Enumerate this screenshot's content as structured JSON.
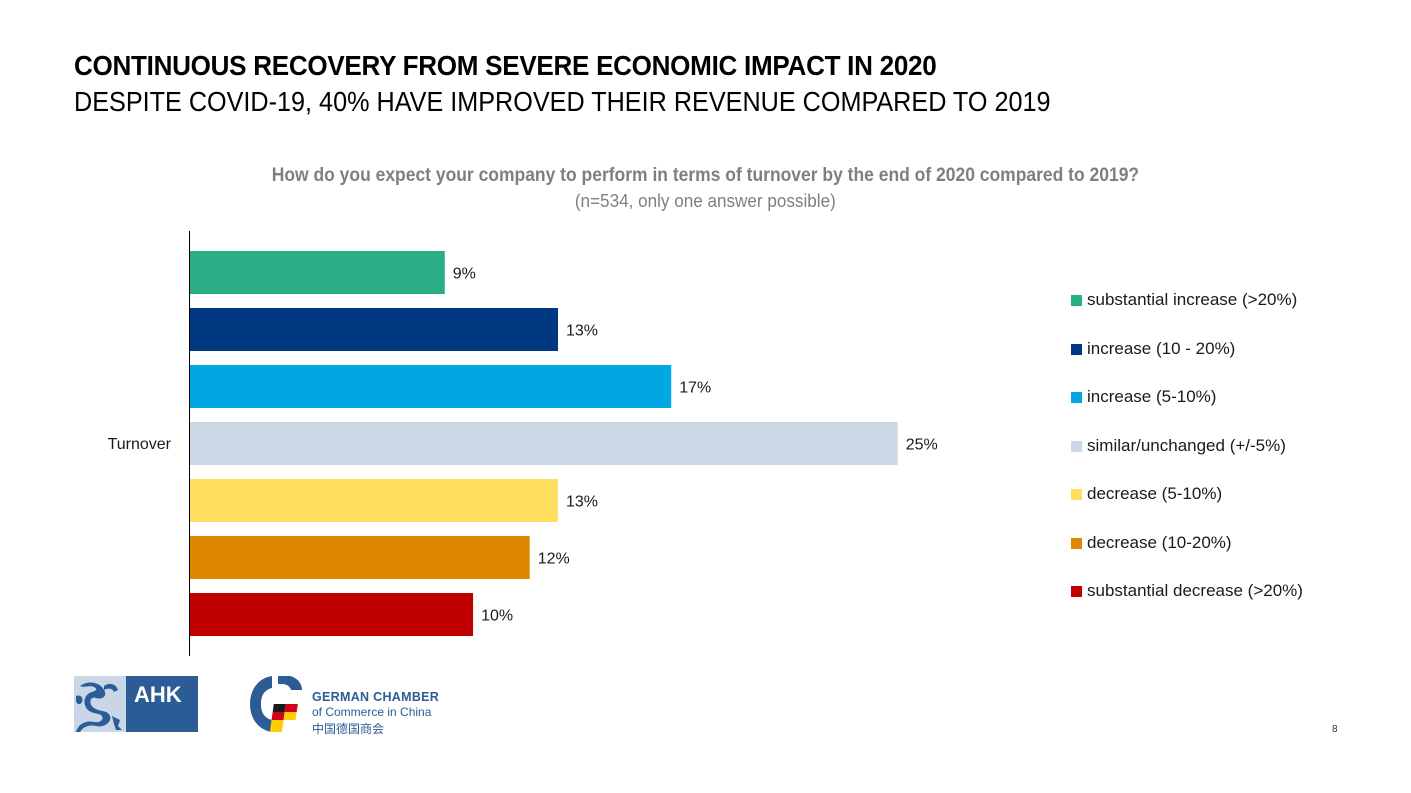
{
  "header": {
    "title": "CONTINUOUS RECOVERY FROM SEVERE ECONOMIC IMPACT IN 2020",
    "subtitle": "DESPITE COVID-19, 40% HAVE IMPROVED THEIR REVENUE COMPARED TO 2019"
  },
  "chart_data": {
    "type": "bar",
    "orientation": "horizontal",
    "title": "How do you expect your company to perform in terms of turnover by the end of 2020 compared to 2019?",
    "subtitle": "(n=534, only one answer possible)",
    "category_label": "Turnover",
    "xlabel": "",
    "ylabel": "",
    "xlim": [
      0,
      26
    ],
    "grid": false,
    "legend_position": "right",
    "value_suffix": "%",
    "series": [
      {
        "name": "substantial increase (>20%)",
        "value": 9,
        "label": "9%",
        "color": "#2aae85"
      },
      {
        "name": "increase (10 - 20%)",
        "value": 13,
        "label": "13%",
        "color": "#003781"
      },
      {
        "name": "increase (5-10%)",
        "value": 17,
        "label": "17%",
        "color": "#00a7e2"
      },
      {
        "name": "similar/unchanged (+/-5%)",
        "value": 25,
        "label": "25%",
        "color": "#cbd7e5"
      },
      {
        "name": "decrease (5-10%)",
        "value": 13,
        "label": "13%",
        "color": "#ffdd5f"
      },
      {
        "name": "decrease (10-20%)",
        "value": 12,
        "label": "12%",
        "color": "#dd8700"
      },
      {
        "name": "substantial decrease (>20%)",
        "value": 10,
        "label": "10%",
        "color": "#c00000"
      }
    ]
  },
  "footer": {
    "ahk_logo_text": "AHK",
    "chamber_line1": "GERMAN CHAMBER",
    "chamber_line2": "of Commerce in China",
    "chamber_line3": "中国德国商会",
    "page_number": "8"
  }
}
